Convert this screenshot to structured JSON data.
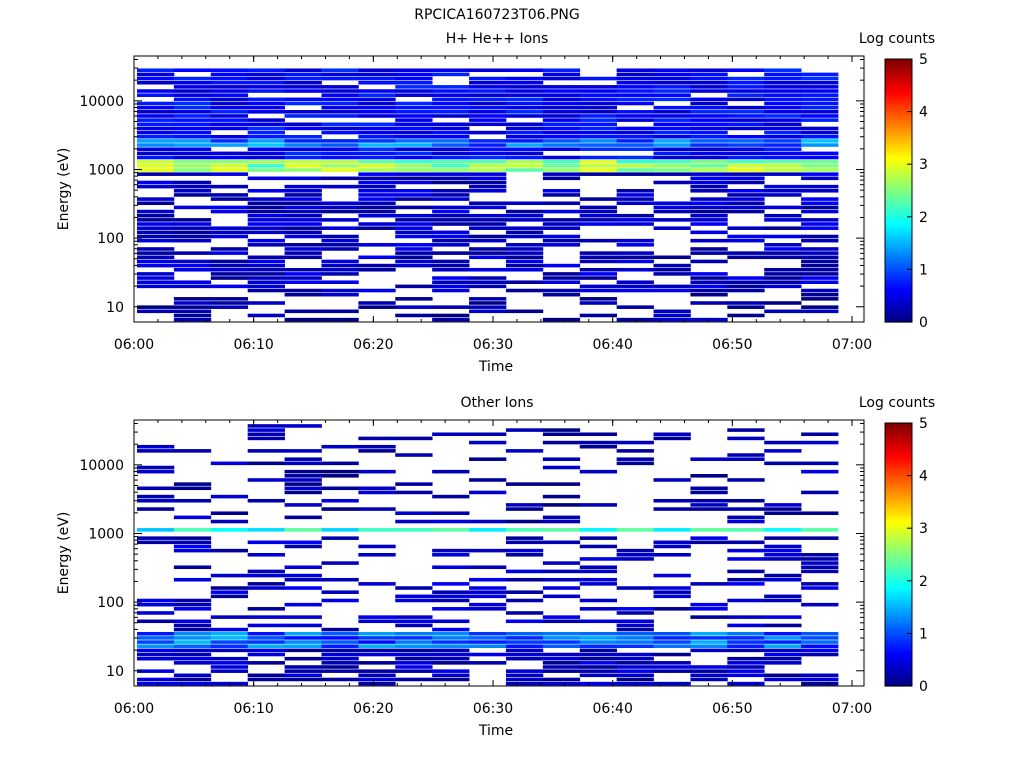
{
  "figure": {
    "title": "RPCICA160723T06.PNG"
  },
  "colormap": [
    "#00007f",
    "#0000ff",
    "#007fff",
    "#00ffff",
    "#7fff7f",
    "#ffff00",
    "#ff7f00",
    "#ff0000",
    "#7f0000"
  ],
  "chart_data": [
    {
      "type": "heatmap",
      "title": "H+ He++ Ions",
      "xlabel": "Time",
      "ylabel": "Energy (eV)",
      "x_ticks": [
        "06:00",
        "06:10",
        "06:20",
        "06:30",
        "06:40",
        "06:50",
        "07:00"
      ],
      "x_range": [
        "06:00",
        "07:01"
      ],
      "y_ticks": [
        "10",
        "100",
        "1000",
        "10000"
      ],
      "y_scale": "log",
      "y_range": [
        6,
        45000
      ],
      "colorbar": {
        "label": "Log counts",
        "ticks": [
          "0",
          "1",
          "2",
          "3",
          "4",
          "5"
        ],
        "range": [
          0,
          5
        ]
      },
      "time_bins": 19,
      "energy_bins": 64,
      "bands": [
        {
          "energy_eV": [
            950,
            1350
          ],
          "log_counts": 2.6,
          "note": "peak near 1100 eV, up to ~3.5"
        },
        {
          "energy_eV": [
            2100,
            2600
          ],
          "log_counts": 1.2
        },
        {
          "energy_eV": [
            1000,
            30000
          ],
          "log_counts": 0.6,
          "coverage": 0.9
        },
        {
          "energy_eV": [
            15,
            1000
          ],
          "log_counts": 0.35,
          "coverage": 0.65
        },
        {
          "energy_eV": [
            6,
            15
          ],
          "log_counts": 0.15,
          "coverage": 0.45
        }
      ]
    },
    {
      "type": "heatmap",
      "title": "Other Ions",
      "xlabel": "Time",
      "ylabel": "Energy (eV)",
      "x_ticks": [
        "06:00",
        "06:10",
        "06:20",
        "06:30",
        "06:40",
        "06:50",
        "07:00"
      ],
      "x_range": [
        "06:00",
        "07:01"
      ],
      "y_ticks": [
        "10",
        "100",
        "1000",
        "10000"
      ],
      "y_scale": "log",
      "y_range": [
        6,
        45000
      ],
      "colorbar": {
        "label": "Log counts",
        "ticks": [
          "0",
          "1",
          "2",
          "3",
          "4",
          "5"
        ],
        "range": [
          0,
          5
        ]
      },
      "time_bins": 19,
      "energy_bins": 64,
      "bands": [
        {
          "energy_eV": [
            1050,
            1250
          ],
          "log_counts": 1.9,
          "note": "steady line near 1100 eV"
        },
        {
          "energy_eV": [
            20,
            35
          ],
          "log_counts": 1.1,
          "note": "low-energy band, up to ~1.7"
        },
        {
          "energy_eV": [
            6,
            20
          ],
          "log_counts": 0.3,
          "coverage": 0.7
        },
        {
          "energy_eV": [
            35,
            900
          ],
          "log_counts": 0.35,
          "coverage": 0.4
        },
        {
          "energy_eV": [
            1300,
            40000
          ],
          "log_counts": 0.25,
          "coverage": 0.28
        }
      ]
    }
  ]
}
